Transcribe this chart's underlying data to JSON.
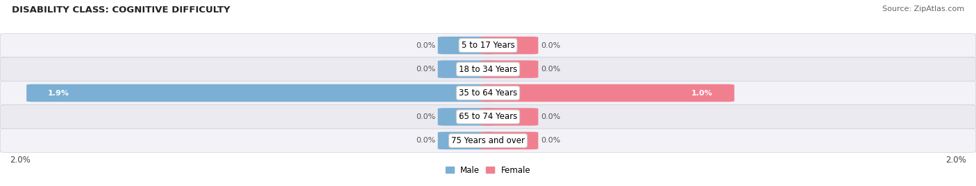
{
  "title": "DISABILITY CLASS: COGNITIVE DIFFICULTY",
  "source": "Source: ZipAtlas.com",
  "categories": [
    "5 to 17 Years",
    "18 to 34 Years",
    "35 to 64 Years",
    "65 to 74 Years",
    "75 Years and over"
  ],
  "male_values": [
    0.0,
    0.0,
    1.9,
    0.0,
    0.0
  ],
  "female_values": [
    0.0,
    0.0,
    1.0,
    0.0,
    0.0
  ],
  "x_max": 2.0,
  "male_color": "#7bafd4",
  "female_color": "#f08090",
  "row_bg_color_odd": "#f2f2f7",
  "row_bg_color_even": "#eaeaf0",
  "title_fontsize": 9.5,
  "source_fontsize": 8,
  "label_fontsize": 8,
  "cat_fontsize": 8.5,
  "axis_label_fontsize": 8.5,
  "legend_fontsize": 8.5,
  "min_bar_width": 0.18
}
